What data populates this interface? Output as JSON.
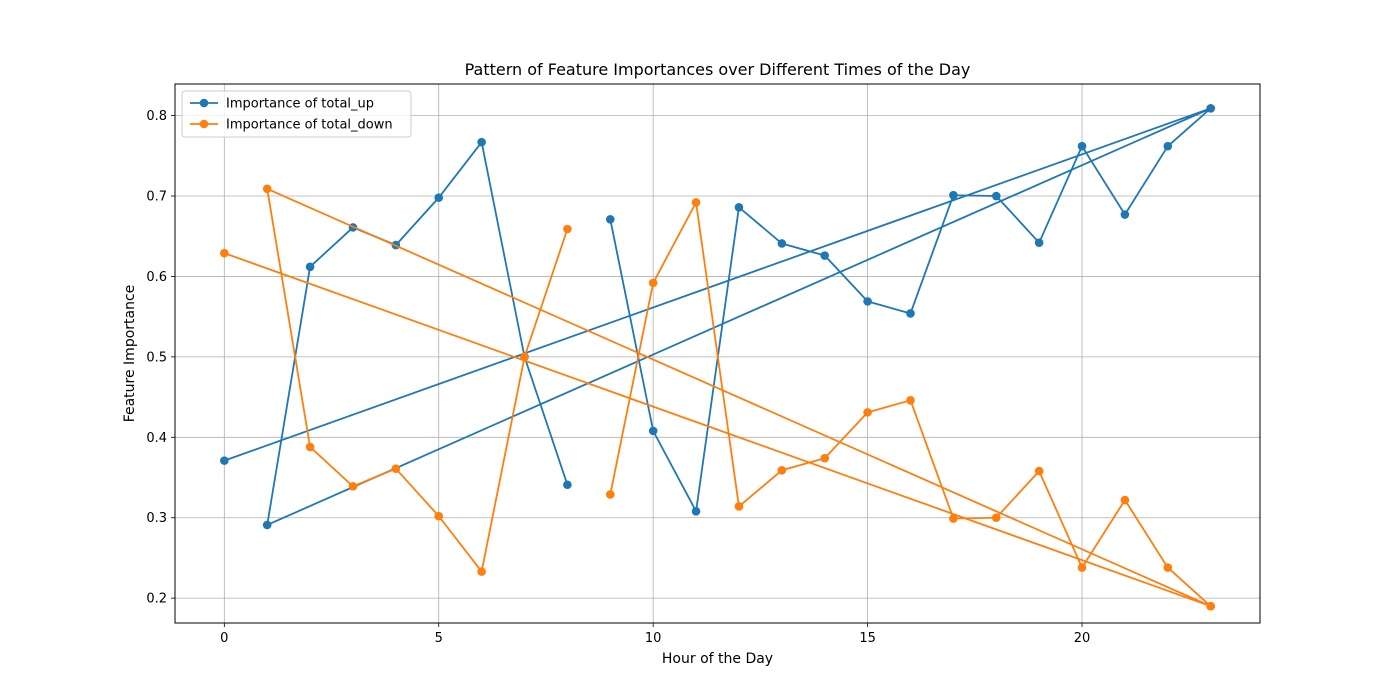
{
  "chart_data": {
    "type": "line",
    "title": "Pattern of Feature Importances over Different Times of the Day",
    "xlabel": "Hour of the Day",
    "ylabel": "Feature Importance",
    "xlim": [
      -1.15,
      24.15
    ],
    "ylim": [
      0.1691,
      0.8393
    ],
    "xticks": [
      0,
      5,
      10,
      15,
      20
    ],
    "yticks": [
      0.2,
      0.3,
      0.4,
      0.5,
      0.6,
      0.7,
      0.8
    ],
    "ytick_labels": [
      "0.2",
      "0.3",
      "0.4",
      "0.5",
      "0.6",
      "0.7",
      "0.8"
    ],
    "grid": true,
    "legend_position": "top-left",
    "series": [
      {
        "name": "Importance of total_up",
        "color": "#1f77b4",
        "marker": "circle",
        "x": [
          0,
          23,
          1,
          2,
          3,
          4,
          5,
          6,
          7,
          8,
          null,
          9,
          10,
          11,
          12,
          13,
          14,
          15,
          16,
          17,
          18,
          19,
          20,
          21,
          22,
          23
        ],
        "y": [
          0.371,
          0.809,
          0.291,
          0.612,
          0.661,
          0.639,
          0.698,
          0.767,
          0.5,
          0.341,
          null,
          0.671,
          0.408,
          0.308,
          0.686,
          0.641,
          0.626,
          0.569,
          0.554,
          0.701,
          0.7,
          0.642,
          0.762,
          0.677,
          0.762,
          0.809
        ]
      },
      {
        "name": "Importance of total_down",
        "color": "#ff7f0e",
        "marker": "circle",
        "x": [
          0,
          23,
          1,
          2,
          3,
          4,
          5,
          6,
          7,
          8,
          null,
          9,
          10,
          11,
          12,
          13,
          14,
          15,
          16,
          17,
          18,
          19,
          20,
          21,
          22,
          23
        ],
        "y": [
          0.629,
          0.19,
          0.709,
          0.388,
          0.339,
          0.361,
          0.302,
          0.233,
          0.5,
          0.659,
          null,
          0.329,
          0.592,
          0.692,
          0.314,
          0.359,
          0.374,
          0.431,
          0.446,
          0.299,
          0.3,
          0.358,
          0.238,
          0.322,
          0.238,
          0.19
        ]
      }
    ]
  }
}
